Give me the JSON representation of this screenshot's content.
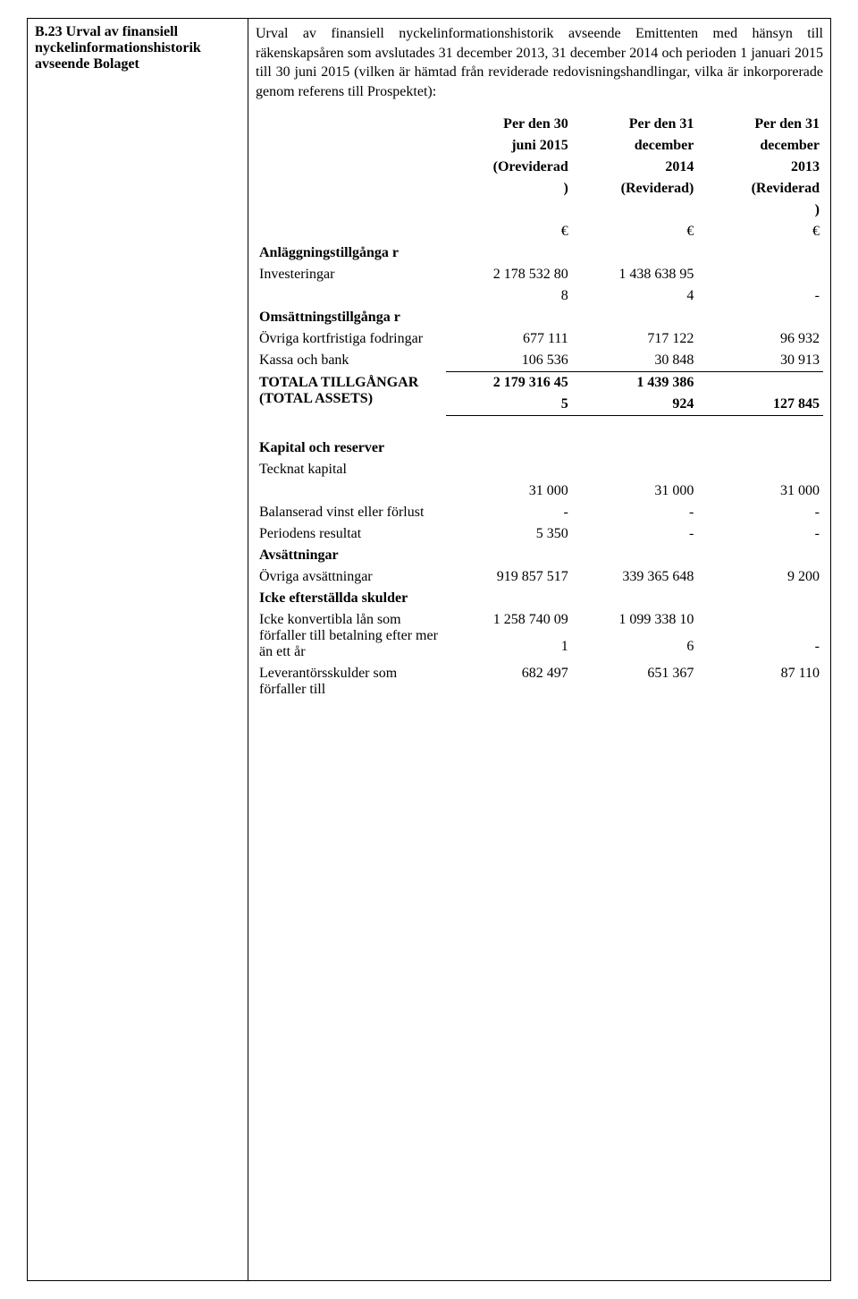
{
  "left": {
    "heading": "B.23 Urval av finansiell nyckelinformationshistorik avseende Bolaget"
  },
  "intro": "Urval av finansiell nyckelinformationshistorik avseende Emittenten med hänsyn till räkenskapsåren som avslutades 31 december 2013, 31 december 2014 och perioden 1 januari 2015 till 30 juni 2015 (vilken är hämtad från reviderade redovisningshandlingar, vilka är inkorporerade genom referens till Prospektet):",
  "cols": {
    "c1": {
      "l1": "Per den 30",
      "l2": "juni 2015",
      "l3": "(Oreviderad",
      "l4": ")"
    },
    "c2": {
      "l1": "Per den 31",
      "l2": "december",
      "l3": "2014",
      "l4": "(Reviderad)"
    },
    "c3": {
      "l1": "Per den 31",
      "l2": "december",
      "l3": "2013",
      "l4": "(Reviderad",
      "l5": ")"
    }
  },
  "currency": "€",
  "sections": {
    "fixed_assets": "Anläggningstillgånga r",
    "investments": {
      "label": "Investeringar",
      "c1a": "2 178 532 80",
      "c1b": "8",
      "c2a": "1 438 638 95",
      "c2b": "4",
      "c3": "-"
    },
    "current_assets": "Omsättningstillgånga r",
    "receivables": {
      "label": "Övriga kortfristiga fodringar",
      "c1": "677 111",
      "c2": "717 122",
      "c3": "96 932"
    },
    "cash": {
      "label": "Kassa och bank",
      "c1": "106 536",
      "c2": "30 848",
      "c3": "30 913"
    },
    "total_assets": {
      "label": "TOTALA TILLGÅNGAR (TOTAL ASSETS)",
      "c1a": "2 179 316 45",
      "c1b": "5",
      "c2a": "1 439 386",
      "c2b": "924",
      "c3": "127 845"
    },
    "capital_reserves": "Kapital och reserver",
    "subscribed": {
      "label": "Tecknat kapital",
      "c1": "31 000",
      "c2": "31 000",
      "c3": "31 000"
    },
    "retained": {
      "label": "Balanserad vinst eller förlust",
      "c1": "-",
      "c2": "-",
      "c3": "-"
    },
    "period_result": {
      "label": "Periodens resultat",
      "c1": "5 350",
      "c2": "-",
      "c3": "-"
    },
    "provisions_h": "Avsättningar",
    "other_prov": {
      "label": "Övriga avsättningar",
      "c1": "919 857 517",
      "c2": "339 365 648",
      "c3": "9 200"
    },
    "nonsub_h": "Icke efterställda skulder",
    "loans": {
      "label": "Icke konvertibla lån som förfaller till betalning efter mer än ett år",
      "c1a": "1 258 740 09",
      "c1b": "1",
      "c2a": "1 099 338 10",
      "c2b": "6",
      "c3": "-"
    },
    "trade": {
      "label": "Leverantörsskulder som förfaller till",
      "c1": "682 497",
      "c2": "651 367",
      "c3": "87 110"
    }
  }
}
